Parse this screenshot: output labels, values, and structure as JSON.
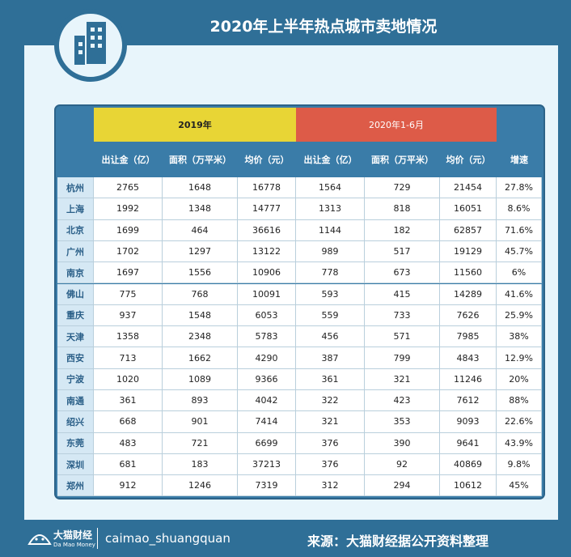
{
  "header": {
    "title": "2020年上半年热点城市卖地情况"
  },
  "table": {
    "groups": [
      "2019年",
      "2020年1-6月"
    ],
    "columns": [
      "出让金（亿）",
      "面积（万平米）",
      "均价（元）",
      "出让金（亿）",
      "面积（万平米）",
      "均价（元）",
      "增速"
    ],
    "rows": [
      [
        "杭州",
        "2765",
        "1648",
        "16778",
        "1564",
        "729",
        "21454",
        "27.8%"
      ],
      [
        "上海",
        "1992",
        "1348",
        "14777",
        "1313",
        "818",
        "16051",
        "8.6%"
      ],
      [
        "北京",
        "1699",
        "464",
        "36616",
        "1144",
        "182",
        "62857",
        "71.6%"
      ],
      [
        "广州",
        "1702",
        "1297",
        "13122",
        "989",
        "517",
        "19129",
        "45.7%"
      ],
      [
        "南京",
        "1697",
        "1556",
        "10906",
        "778",
        "673",
        "11560",
        "6%"
      ],
      [
        "佛山",
        "775",
        "768",
        "10091",
        "593",
        "415",
        "14289",
        "41.6%"
      ],
      [
        "重庆",
        "937",
        "1548",
        "6053",
        "559",
        "733",
        "7626",
        "25.9%"
      ],
      [
        "天津",
        "1358",
        "2348",
        "5783",
        "456",
        "571",
        "7985",
        "38%"
      ],
      [
        "西安",
        "713",
        "1662",
        "4290",
        "387",
        "799",
        "4843",
        "12.9%"
      ],
      [
        "宁波",
        "1020",
        "1089",
        "9366",
        "361",
        "321",
        "11246",
        "20%"
      ],
      [
        "南通",
        "361",
        "893",
        "4042",
        "322",
        "423",
        "7612",
        "88%"
      ],
      [
        "绍兴",
        "668",
        "901",
        "7414",
        "321",
        "353",
        "9093",
        "22.6%"
      ],
      [
        "东莞",
        "483",
        "721",
        "6699",
        "376",
        "390",
        "9641",
        "43.9%"
      ],
      [
        "深圳",
        "681",
        "183",
        "37213",
        "376",
        "92",
        "40869",
        "9.8%"
      ],
      [
        "郑州",
        "912",
        "1246",
        "7319",
        "312",
        "294",
        "10612",
        "45%"
      ]
    ]
  },
  "footer": {
    "logo": "大猫财经",
    "logo_sub": "Da Mao Money",
    "handle": "caimao_shuangquan",
    "source": "来源：大猫财经据公开资料整理"
  }
}
